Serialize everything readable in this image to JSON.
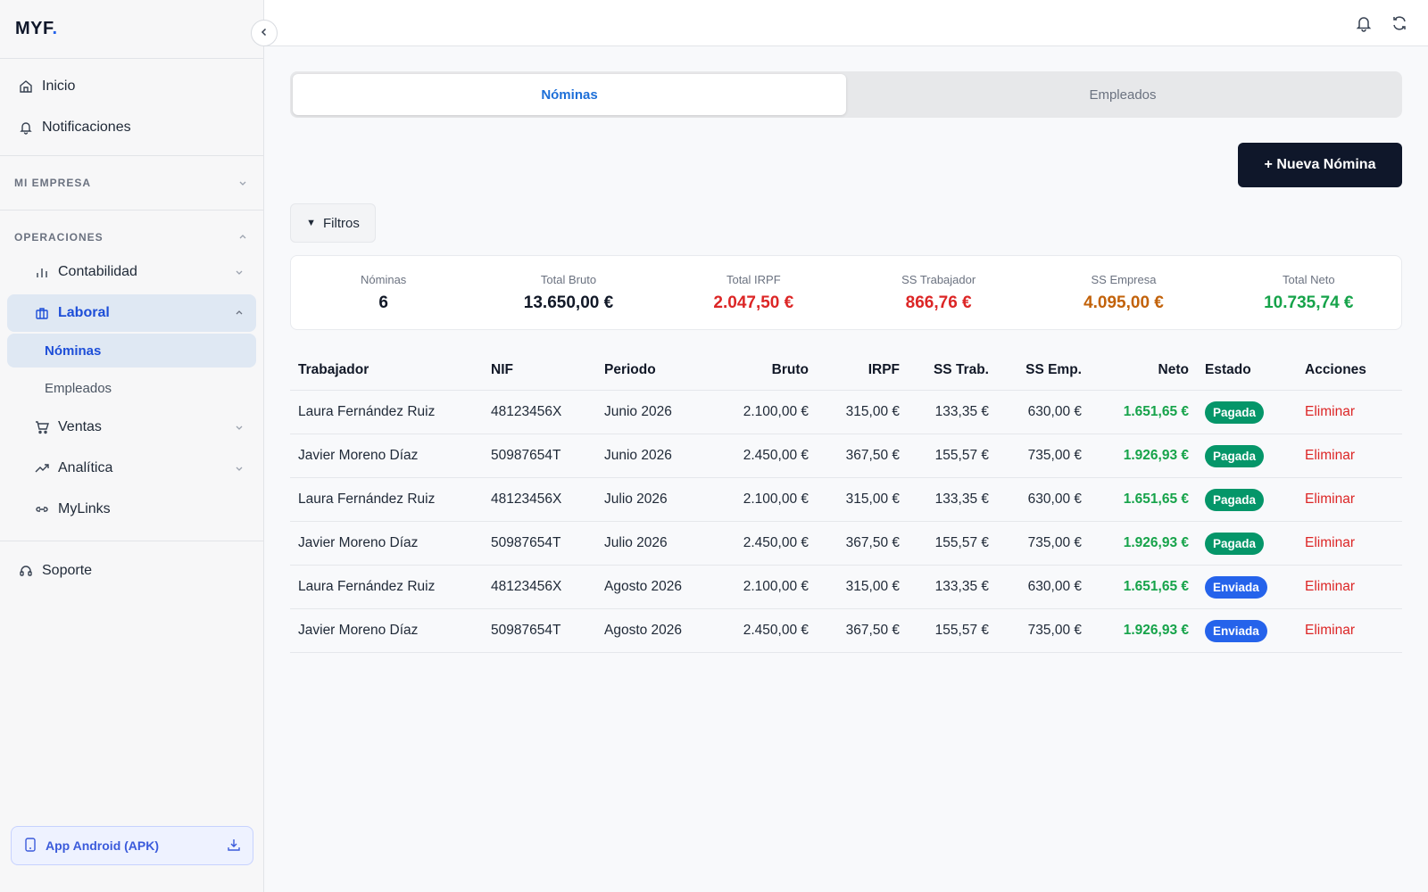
{
  "logo": {
    "text": "MYF",
    "dot": "."
  },
  "sidebar": {
    "top_items": [
      {
        "label": "Inicio",
        "icon": "home-icon"
      },
      {
        "label": "Notificaciones",
        "icon": "bell-icon"
      }
    ],
    "section_mi_empresa": "MI EMPRESA",
    "section_operaciones": "OPERACIONES",
    "ops_items": {
      "contabilidad": "Contabilidad",
      "laboral": "Laboral",
      "nominas": "Nóminas",
      "empleados": "Empleados",
      "ventas": "Ventas",
      "analitica": "Analítica",
      "mylinks": "MyLinks"
    },
    "soporte": "Soporte",
    "apk_button": "App Android (APK)"
  },
  "tabs": [
    {
      "label": "Nóminas",
      "active": true
    },
    {
      "label": "Empleados",
      "active": false
    }
  ],
  "new_button": "+ Nueva Nómina",
  "filters_button": "Filtros",
  "summary": [
    {
      "label": "Nóminas",
      "value": "6",
      "color": "#111827"
    },
    {
      "label": "Total Bruto",
      "value": "13.650,00 €",
      "color": "#111827"
    },
    {
      "label": "Total IRPF",
      "value": "2.047,50 €",
      "color": "#dc2626"
    },
    {
      "label": "SS Trabajador",
      "value": "866,76 €",
      "color": "#dc2626"
    },
    {
      "label": "SS Empresa",
      "value": "4.095,00 €",
      "color": "#c2620a"
    },
    {
      "label": "Total Neto",
      "value": "10.735,74 €",
      "color": "#16a34a"
    }
  ],
  "table": {
    "headers": [
      "Trabajador",
      "NIF",
      "Periodo",
      "Bruto",
      "IRPF",
      "SS Trab.",
      "SS Emp.",
      "Neto",
      "Estado",
      "Acciones"
    ],
    "rows": [
      {
        "trabajador": "Laura Fernández Ruiz",
        "nif": "48123456X",
        "periodo": "Junio 2026",
        "bruto": "2.100,00 €",
        "irpf": "315,00 €",
        "ss_trab": "133,35 €",
        "ss_emp": "630,00 €",
        "neto": "1.651,65 €",
        "estado": "Pagada",
        "estado_color": "#059669",
        "accion": "Eliminar"
      },
      {
        "trabajador": "Javier Moreno Díaz",
        "nif": "50987654T",
        "periodo": "Junio 2026",
        "bruto": "2.450,00 €",
        "irpf": "367,50 €",
        "ss_trab": "155,57 €",
        "ss_emp": "735,00 €",
        "neto": "1.926,93 €",
        "estado": "Pagada",
        "estado_color": "#059669",
        "accion": "Eliminar"
      },
      {
        "trabajador": "Laura Fernández Ruiz",
        "nif": "48123456X",
        "periodo": "Julio 2026",
        "bruto": "2.100,00 €",
        "irpf": "315,00 €",
        "ss_trab": "133,35 €",
        "ss_emp": "630,00 €",
        "neto": "1.651,65 €",
        "estado": "Pagada",
        "estado_color": "#059669",
        "accion": "Eliminar"
      },
      {
        "trabajador": "Javier Moreno Díaz",
        "nif": "50987654T",
        "periodo": "Julio 2026",
        "bruto": "2.450,00 €",
        "irpf": "367,50 €",
        "ss_trab": "155,57 €",
        "ss_emp": "735,00 €",
        "neto": "1.926,93 €",
        "estado": "Pagada",
        "estado_color": "#059669",
        "accion": "Eliminar"
      },
      {
        "trabajador": "Laura Fernández Ruiz",
        "nif": "48123456X",
        "periodo": "Agosto 2026",
        "bruto": "2.100,00 €",
        "irpf": "315,00 €",
        "ss_trab": "133,35 €",
        "ss_emp": "630,00 €",
        "neto": "1.651,65 €",
        "estado": "Enviada",
        "estado_color": "#2563eb",
        "accion": "Eliminar"
      },
      {
        "trabajador": "Javier Moreno Díaz",
        "nif": "50987654T",
        "periodo": "Agosto 2026",
        "bruto": "2.450,00 €",
        "irpf": "367,50 €",
        "ss_trab": "155,57 €",
        "ss_emp": "735,00 €",
        "neto": "1.926,93 €",
        "estado": "Enviada",
        "estado_color": "#2563eb",
        "accion": "Eliminar"
      }
    ]
  },
  "colors": {
    "accent": "#1d6fd8",
    "primary_dark": "#0f172a",
    "danger": "#dc2626",
    "success": "#16a34a"
  }
}
